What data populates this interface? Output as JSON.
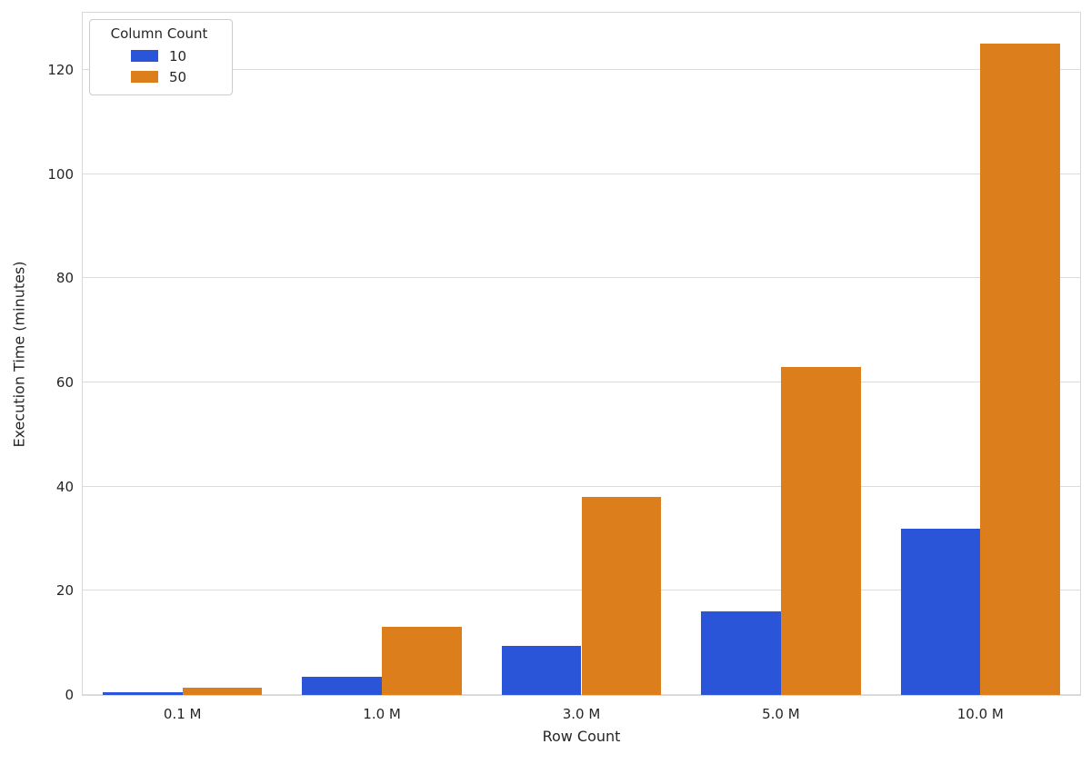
{
  "chart_data": {
    "type": "bar",
    "title": "",
    "xlabel": "Row Count",
    "ylabel": "Execution Time (minutes)",
    "categories": [
      "0.1 M",
      "1.0 M",
      "3.0 M",
      "5.0 M",
      "10.0 M"
    ],
    "series": [
      {
        "name": "10",
        "color": "#2b55d8",
        "values": [
          0.6,
          3.5,
          9.5,
          16,
          32
        ]
      },
      {
        "name": "50",
        "color": "#dd7e1c",
        "values": [
          1.4,
          13,
          38,
          63,
          125
        ]
      }
    ],
    "ylim": [
      0,
      131
    ],
    "yticks": [
      0,
      20,
      40,
      60,
      80,
      100,
      120
    ],
    "legend": {
      "title": "Column Count",
      "position": "upper-left"
    },
    "grid": "horizontal",
    "grid_color": "#dcdcdc",
    "background": "#ffffff",
    "text_color": "#262626"
  }
}
